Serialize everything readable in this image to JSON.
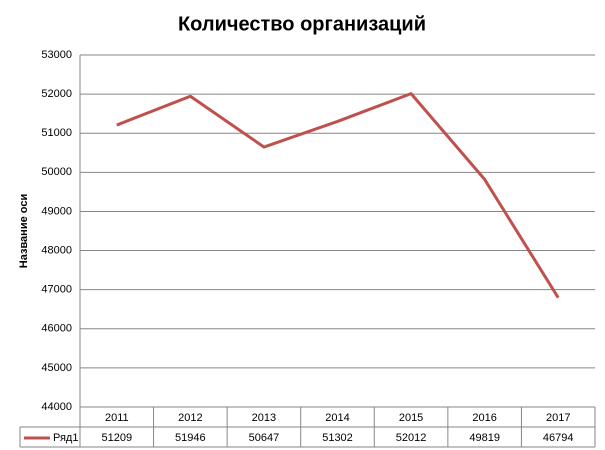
{
  "chart_data": {
    "type": "line",
    "title": "Количество организаций",
    "y_label": "Название оси",
    "categories": [
      "2011",
      "2012",
      "2013",
      "2014",
      "2015",
      "2016",
      "2017"
    ],
    "series": [
      {
        "name": "Ряд1",
        "color": "#c0504d",
        "values": [
          51209,
          51946,
          50647,
          51302,
          52012,
          49819,
          46794
        ]
      }
    ],
    "ylim": [
      44000,
      53000
    ],
    "yticks": [
      44000,
      45000,
      46000,
      47000,
      48000,
      49000,
      50000,
      51000,
      52000,
      53000
    ],
    "grid": true,
    "data_table": true
  }
}
